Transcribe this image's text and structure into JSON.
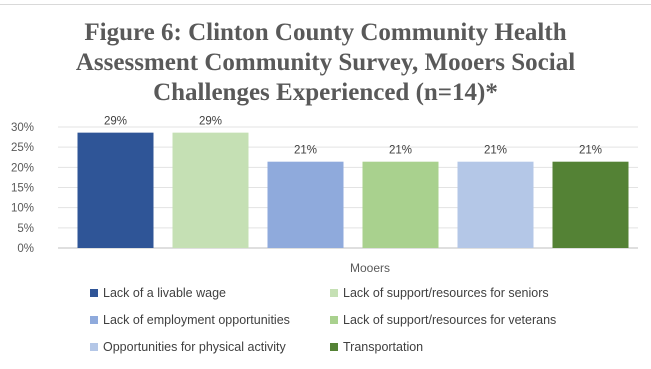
{
  "chart_data": {
    "type": "bar",
    "title_lines": [
      "Figure 6: Clinton County Community Health",
      "Assessment Community Survey, Mooers Social",
      "Challenges Experienced (n=14)*"
    ],
    "categories": [
      "Mooers"
    ],
    "xlabel": "",
    "ylabel": "",
    "ylim": [
      0,
      30
    ],
    "y_ticks": [
      "0%",
      "5%",
      "10%",
      "15%",
      "20%",
      "25%",
      "30%"
    ],
    "y_tick_values": [
      0,
      5,
      10,
      15,
      20,
      25,
      30
    ],
    "grid": true,
    "legend_position": "bottom",
    "series": [
      {
        "name": "Lack of a livable wage",
        "values": [
          28.6
        ],
        "label": "29%",
        "color": "#2f5597"
      },
      {
        "name": "Lack of support/resources for seniors",
        "values": [
          28.6
        ],
        "label": "29%",
        "color": "#c5e0b4"
      },
      {
        "name": "Lack of employment opportunities",
        "values": [
          21.4
        ],
        "label": "21%",
        "color": "#8faadc"
      },
      {
        "name": "Lack of support/resources for veterans",
        "values": [
          21.4
        ],
        "label": "21%",
        "color": "#a9d18e"
      },
      {
        "name": "Opportunities for physical activity",
        "values": [
          21.4
        ],
        "label": "21%",
        "color": "#b4c7e7"
      },
      {
        "name": "Transportation",
        "values": [
          21.4
        ],
        "label": "21%",
        "color": "#548235"
      }
    ]
  }
}
